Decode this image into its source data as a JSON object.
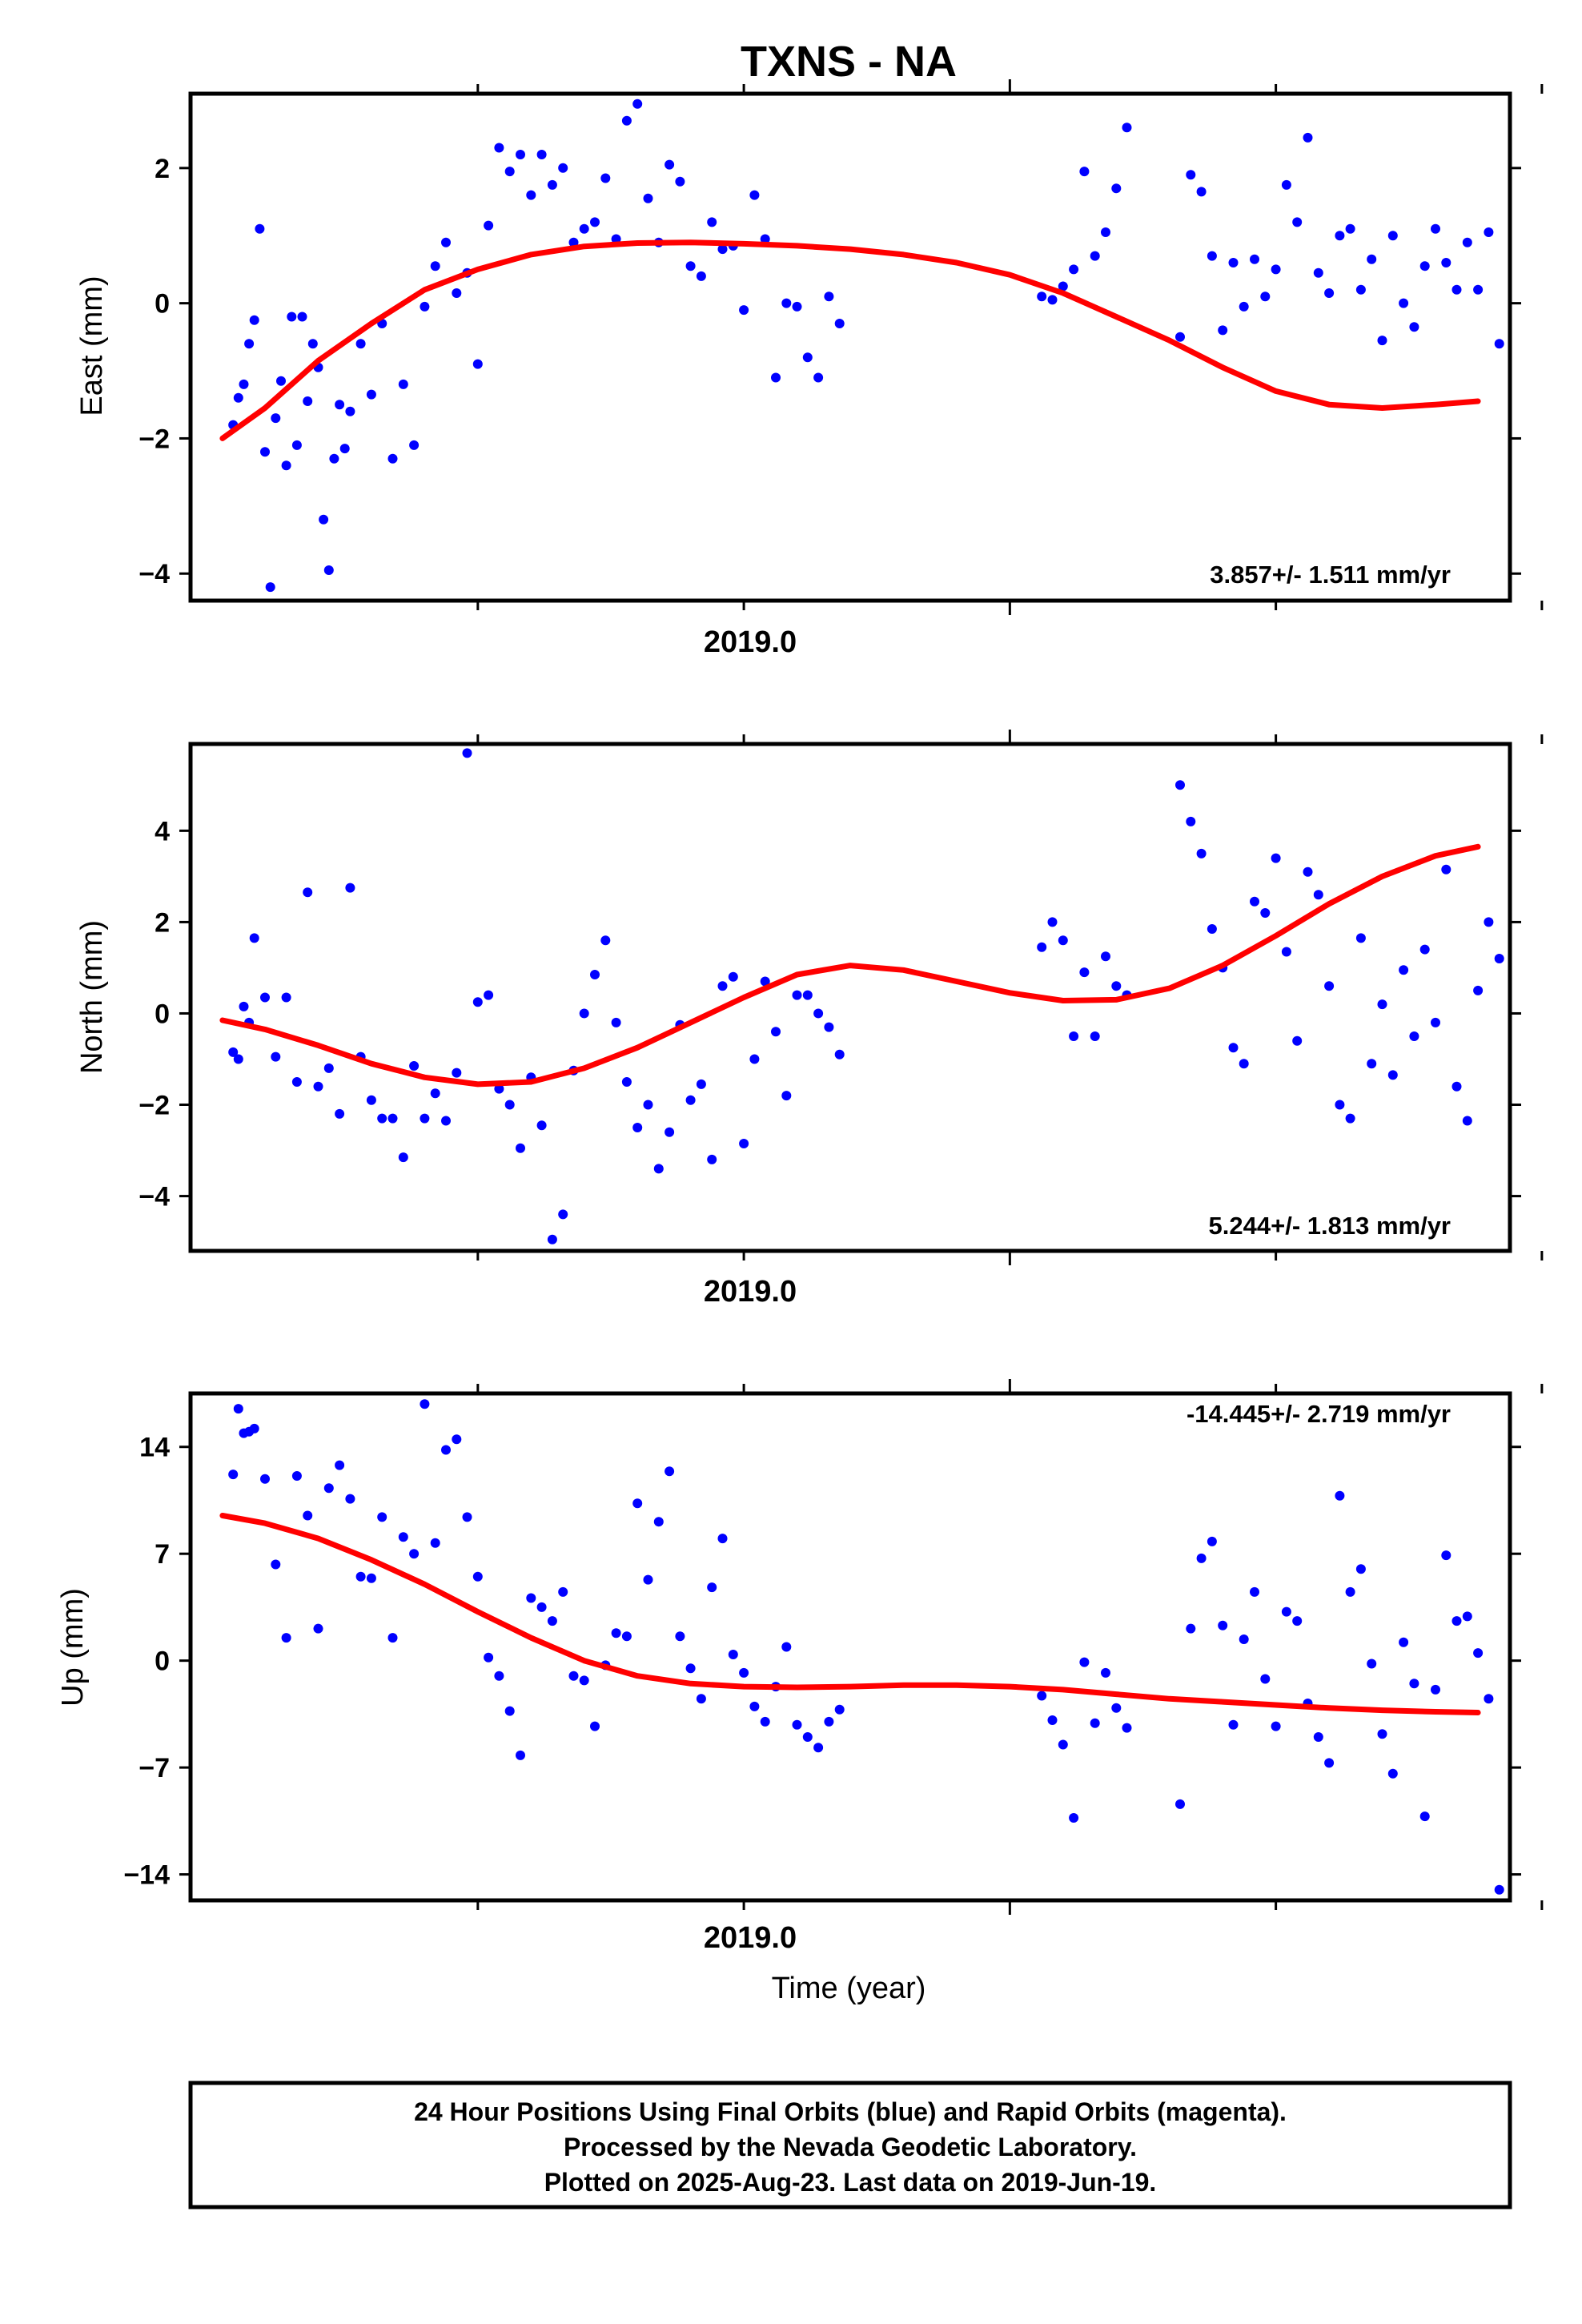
{
  "title": "TXNS - NA",
  "footer": {
    "line1": "24 Hour Positions Using Final Orbits (blue) and Rapid Orbits (magenta).",
    "line2": "Processed by the Nevada Geodetic Laboratory.",
    "line3": "Plotted on 2025-Aug-23. Last data on 2019-Jun-19."
  },
  "colors": {
    "final": "#0000ff",
    "fit": "#ff0000",
    "frame": "#000000"
  },
  "chart_data": [
    {
      "type": "scatter",
      "ylabel": "East (mm)",
      "xlabel": "",
      "x_tick_label": "2019.0",
      "x_tick_value": 2019.0,
      "x_minor_ticks": [
        2018.5,
        2018.75,
        2019.25,
        2019.5,
        2019.75
      ],
      "xlim": [
        2018.23,
        2019.47
      ],
      "ylim": [
        -4.4,
        3.1
      ],
      "yticks": [
        -4,
        -2,
        0,
        2
      ],
      "ytick_labels": [
        "−4",
        "−2",
        "0",
        "2"
      ],
      "rate_text": "3.857+/- 1.511 mm/yr",
      "rate_position": "bottom-right",
      "fit": {
        "x": [
          2018.26,
          2018.3,
          2018.35,
          2018.4,
          2018.45,
          2018.5,
          2018.55,
          2018.6,
          2018.65,
          2018.7,
          2018.75,
          2018.8,
          2018.85,
          2018.9,
          2018.95,
          2019.0,
          2019.05,
          2019.1,
          2019.15,
          2019.2,
          2019.25,
          2019.3,
          2019.35,
          2019.4,
          2019.44
        ],
        "y": [
          -2.0,
          -1.55,
          -0.85,
          -0.3,
          0.2,
          0.5,
          0.72,
          0.84,
          0.89,
          0.9,
          0.88,
          0.85,
          0.8,
          0.72,
          0.6,
          0.42,
          0.15,
          -0.2,
          -0.55,
          -0.95,
          -1.3,
          -1.5,
          -1.55,
          -1.5,
          -1.45
        ]
      },
      "points": {
        "x": [
          2018.27,
          2018.275,
          2018.28,
          2018.285,
          2018.29,
          2018.295,
          2018.3,
          2018.305,
          2018.31,
          2018.315,
          2018.32,
          2018.325,
          2018.33,
          2018.335,
          2018.34,
          2018.345,
          2018.35,
          2018.355,
          2018.36,
          2018.365,
          2018.37,
          2018.375,
          2018.38,
          2018.39,
          2018.4,
          2018.41,
          2018.42,
          2018.43,
          2018.44,
          2018.45,
          2018.46,
          2018.47,
          2018.48,
          2018.49,
          2018.5,
          2018.51,
          2018.52,
          2018.53,
          2018.54,
          2018.55,
          2018.56,
          2018.57,
          2018.58,
          2018.59,
          2018.6,
          2018.61,
          2018.62,
          2018.63,
          2018.64,
          2018.65,
          2018.66,
          2018.67,
          2018.68,
          2018.69,
          2018.7,
          2018.71,
          2018.72,
          2018.73,
          2018.74,
          2018.75,
          2018.76,
          2018.77,
          2018.78,
          2018.79,
          2018.8,
          2018.81,
          2018.82,
          2018.83,
          2018.84,
          2019.03,
          2019.04,
          2019.05,
          2019.06,
          2019.07,
          2019.08,
          2019.09,
          2019.1,
          2019.11,
          2019.16,
          2019.17,
          2019.18,
          2019.19,
          2019.2,
          2019.21,
          2019.22,
          2019.23,
          2019.24,
          2019.25,
          2019.26,
          2019.27,
          2019.28,
          2019.29,
          2019.3,
          2019.31,
          2019.32,
          2019.33,
          2019.34,
          2019.35,
          2019.36,
          2019.37,
          2019.38,
          2019.39,
          2019.4,
          2019.41,
          2019.42,
          2019.43,
          2019.44,
          2019.45,
          2019.46
        ],
        "y": [
          -1.8,
          -1.4,
          -1.2,
          -0.6,
          -0.25,
          1.1,
          -2.2,
          -4.2,
          -1.7,
          -1.15,
          -2.4,
          -0.2,
          -2.1,
          -0.2,
          -1.45,
          -0.6,
          -0.95,
          -3.2,
          -3.95,
          -2.3,
          -1.5,
          -2.15,
          -1.6,
          -0.6,
          -1.35,
          -0.3,
          -2.3,
          -1.2,
          -2.1,
          -0.05,
          0.55,
          0.9,
          0.15,
          0.45,
          -0.9,
          1.15,
          2.3,
          1.95,
          2.2,
          1.6,
          2.2,
          1.75,
          2.0,
          0.9,
          1.1,
          1.2,
          1.85,
          0.95,
          2.7,
          2.95,
          1.55,
          0.9,
          2.05,
          1.8,
          0.55,
          0.4,
          1.2,
          0.8,
          0.85,
          -0.1,
          1.6,
          0.95,
          -1.1,
          0.0,
          -0.05,
          -0.8,
          -1.1,
          0.1,
          -0.3,
          0.1,
          0.05,
          0.25,
          0.5,
          1.95,
          0.7,
          1.05,
          1.7,
          2.6,
          -0.5,
          1.9,
          1.65,
          0.7,
          -0.4,
          0.6,
          -0.05,
          0.65,
          0.1,
          0.5,
          1.75,
          1.2,
          2.45,
          0.45,
          0.15,
          1.0,
          1.1,
          0.2,
          0.65,
          -0.55,
          1.0,
          0.0,
          -0.35,
          0.55,
          1.1,
          0.6,
          0.2,
          0.9,
          0.2,
          1.05,
          -0.6
        ]
      }
    },
    {
      "type": "scatter",
      "ylabel": "North (mm)",
      "xlabel": "",
      "x_tick_label": "2019.0",
      "x_tick_value": 2019.0,
      "x_minor_ticks": [
        2018.5,
        2018.75,
        2019.25,
        2019.5,
        2019.75
      ],
      "xlim": [
        2018.23,
        2019.47
      ],
      "ylim": [
        -5.2,
        5.9
      ],
      "yticks": [
        -4,
        -2,
        0,
        2,
        4
      ],
      "ytick_labels": [
        "−4",
        "−2",
        "0",
        "2",
        "4"
      ],
      "rate_text": "5.244+/- 1.813 mm/yr",
      "rate_position": "bottom-right",
      "fit": {
        "x": [
          2018.26,
          2018.3,
          2018.35,
          2018.4,
          2018.45,
          2018.5,
          2018.55,
          2018.6,
          2018.65,
          2018.7,
          2018.75,
          2018.8,
          2018.85,
          2018.9,
          2018.95,
          2019.0,
          2019.05,
          2019.1,
          2019.15,
          2019.2,
          2019.25,
          2019.3,
          2019.35,
          2019.4,
          2019.44
        ],
        "y": [
          -0.15,
          -0.35,
          -0.7,
          -1.1,
          -1.4,
          -1.55,
          -1.5,
          -1.2,
          -0.75,
          -0.2,
          0.35,
          0.85,
          1.05,
          0.95,
          0.7,
          0.45,
          0.28,
          0.3,
          0.55,
          1.05,
          1.7,
          2.4,
          3.0,
          3.45,
          3.65
        ]
      },
      "points": {
        "x": [
          2018.27,
          2018.275,
          2018.28,
          2018.285,
          2018.29,
          2018.3,
          2018.31,
          2018.32,
          2018.33,
          2018.34,
          2018.35,
          2018.36,
          2018.37,
          2018.38,
          2018.39,
          2018.4,
          2018.41,
          2018.42,
          2018.43,
          2018.44,
          2018.45,
          2018.46,
          2018.47,
          2018.48,
          2018.49,
          2018.5,
          2018.51,
          2018.52,
          2018.53,
          2018.54,
          2018.55,
          2018.56,
          2018.57,
          2018.58,
          2018.59,
          2018.6,
          2018.61,
          2018.62,
          2018.63,
          2018.64,
          2018.65,
          2018.66,
          2018.67,
          2018.68,
          2018.69,
          2018.7,
          2018.71,
          2018.72,
          2018.73,
          2018.74,
          2018.75,
          2018.76,
          2018.77,
          2018.78,
          2018.79,
          2018.8,
          2018.81,
          2018.82,
          2018.83,
          2018.84,
          2019.03,
          2019.04,
          2019.05,
          2019.06,
          2019.07,
          2019.08,
          2019.09,
          2019.1,
          2019.11,
          2019.16,
          2019.17,
          2019.18,
          2019.19,
          2019.2,
          2019.21,
          2019.22,
          2019.23,
          2019.24,
          2019.25,
          2019.26,
          2019.27,
          2019.28,
          2019.29,
          2019.3,
          2019.31,
          2019.32,
          2019.33,
          2019.34,
          2019.35,
          2019.36,
          2019.37,
          2019.38,
          2019.39,
          2019.4,
          2019.41,
          2019.42,
          2019.43,
          2019.44,
          2019.45,
          2019.46
        ],
        "y": [
          -0.85,
          -1.0,
          0.15,
          -0.2,
          1.65,
          0.35,
          -0.95,
          0.35,
          -1.5,
          2.65,
          -1.6,
          -1.2,
          -2.2,
          2.75,
          -0.95,
          -1.9,
          -2.3,
          -2.3,
          -3.15,
          -1.15,
          -2.3,
          -1.75,
          -2.35,
          -1.3,
          5.7,
          0.25,
          0.4,
          -1.65,
          -2.0,
          -2.95,
          -1.4,
          -2.45,
          -4.95,
          -4.4,
          -1.25,
          0.0,
          0.85,
          1.6,
          -0.2,
          -1.5,
          -2.5,
          -2.0,
          -3.4,
          -2.6,
          -0.25,
          -1.9,
          -1.55,
          -3.2,
          0.6,
          0.8,
          -2.85,
          -1.0,
          0.7,
          -0.4,
          -1.8,
          0.4,
          0.4,
          0.0,
          -0.3,
          -0.9,
          1.45,
          2.0,
          1.6,
          -0.5,
          0.9,
          -0.5,
          1.25,
          0.6,
          0.4,
          5.0,
          4.2,
          3.5,
          1.85,
          1.0,
          -0.75,
          -1.1,
          2.45,
          2.2,
          3.4,
          1.35,
          -0.6,
          3.1,
          2.6,
          0.6,
          -2.0,
          -2.3,
          1.65,
          -1.1,
          0.2,
          -1.35,
          0.95,
          -0.5,
          1.4,
          -0.2,
          3.15,
          -1.6,
          -2.35,
          0.5,
          2.0,
          1.2
        ]
      }
    },
    {
      "type": "scatter",
      "ylabel": "Up (mm)",
      "xlabel": "Time (year)",
      "x_tick_label": "2019.0",
      "x_tick_value": 2019.0,
      "x_minor_ticks": [
        2018.5,
        2018.75,
        2019.25,
        2019.5,
        2019.75
      ],
      "xlim": [
        2018.23,
        2019.47
      ],
      "ylim": [
        -15.7,
        17.5
      ],
      "yticks": [
        -14,
        -7,
        0,
        7,
        14
      ],
      "ytick_labels": [
        "−14",
        "−7",
        "0",
        "7",
        "14"
      ],
      "rate_text": "-14.445+/- 2.719 mm/yr",
      "rate_position": "top-right",
      "fit": {
        "x": [
          2018.26,
          2018.3,
          2018.35,
          2018.4,
          2018.45,
          2018.5,
          2018.55,
          2018.6,
          2018.65,
          2018.7,
          2018.75,
          2018.8,
          2018.85,
          2018.9,
          2018.95,
          2019.0,
          2019.05,
          2019.1,
          2019.15,
          2019.2,
          2019.25,
          2019.3,
          2019.35,
          2019.4,
          2019.44
        ],
        "y": [
          9.5,
          9.0,
          8.0,
          6.6,
          5.0,
          3.2,
          1.5,
          0.0,
          -1.0,
          -1.5,
          -1.7,
          -1.75,
          -1.7,
          -1.6,
          -1.6,
          -1.7,
          -1.9,
          -2.2,
          -2.5,
          -2.7,
          -2.9,
          -3.1,
          -3.25,
          -3.35,
          -3.4
        ]
      },
      "points": {
        "x": [
          2018.27,
          2018.275,
          2018.28,
          2018.285,
          2018.29,
          2018.3,
          2018.31,
          2018.32,
          2018.33,
          2018.34,
          2018.35,
          2018.36,
          2018.37,
          2018.38,
          2018.39,
          2018.4,
          2018.41,
          2018.42,
          2018.43,
          2018.44,
          2018.45,
          2018.46,
          2018.47,
          2018.48,
          2018.49,
          2018.5,
          2018.51,
          2018.52,
          2018.53,
          2018.54,
          2018.55,
          2018.56,
          2018.57,
          2018.58,
          2018.59,
          2018.6,
          2018.61,
          2018.62,
          2018.63,
          2018.64,
          2018.65,
          2018.66,
          2018.67,
          2018.68,
          2018.69,
          2018.7,
          2018.71,
          2018.72,
          2018.73,
          2018.74,
          2018.75,
          2018.76,
          2018.77,
          2018.78,
          2018.79,
          2018.8,
          2018.81,
          2018.82,
          2018.83,
          2018.84,
          2019.03,
          2019.04,
          2019.05,
          2019.06,
          2019.07,
          2019.08,
          2019.09,
          2019.1,
          2019.11,
          2019.16,
          2019.17,
          2019.18,
          2019.19,
          2019.2,
          2019.21,
          2019.22,
          2019.23,
          2019.24,
          2019.25,
          2019.26,
          2019.27,
          2019.28,
          2019.29,
          2019.3,
          2019.31,
          2019.32,
          2019.33,
          2019.34,
          2019.35,
          2019.36,
          2019.37,
          2019.38,
          2019.39,
          2019.4,
          2019.41,
          2019.42,
          2019.43,
          2019.44,
          2019.45,
          2019.46
        ],
        "y": [
          12.2,
          16.5,
          14.9,
          15.0,
          15.2,
          11.9,
          6.3,
          1.5,
          12.1,
          9.5,
          2.1,
          11.3,
          12.8,
          10.6,
          5.5,
          5.4,
          9.4,
          1.5,
          8.1,
          7.0,
          16.8,
          7.7,
          13.8,
          14.5,
          9.4,
          5.5,
          0.2,
          -1.0,
          -3.3,
          -6.2,
          4.1,
          3.5,
          2.6,
          4.5,
          -1.0,
          -1.3,
          -4.3,
          -0.3,
          1.8,
          1.6,
          10.3,
          5.3,
          9.1,
          12.4,
          1.6,
          -0.5,
          -2.5,
          4.8,
          8.0,
          0.4,
          -0.8,
          -3.0,
          -4.0,
          -1.7,
          0.9,
          -4.2,
          -5.0,
          -5.7,
          -4.0,
          -3.2,
          -2.3,
          -3.9,
          -5.5,
          -10.3,
          -0.1,
          -4.1,
          -0.8,
          -3.1,
          -4.4,
          -9.4,
          2.1,
          6.7,
          7.8,
          2.3,
          -4.2,
          1.4,
          4.5,
          -1.2,
          -4.3,
          3.2,
          2.6,
          -2.8,
          -5.0,
          -6.7,
          10.8,
          4.5,
          6.0,
          -0.2,
          -4.8,
          -7.4,
          1.2,
          -1.5,
          -10.2,
          -1.9,
          6.9,
          2.6,
          2.9,
          0.5,
          -2.5,
          -15.0
        ]
      }
    }
  ]
}
